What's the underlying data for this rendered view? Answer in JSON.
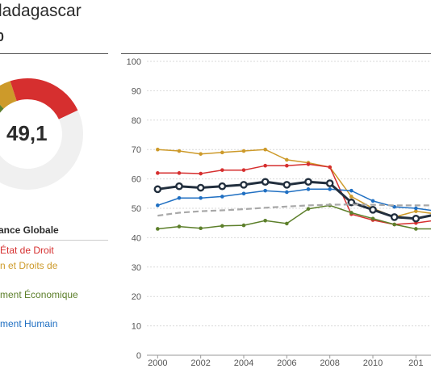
{
  "header": {
    "title": "ladagascar",
    "rank": "0"
  },
  "score": {
    "value": "49,1",
    "segments": [
      {
        "color": "#d62f2f",
        "value": 0.18
      },
      {
        "color": "#f0f0f0",
        "value": 0.52
      },
      {
        "color": "#1f6fc2",
        "value": 0.12
      },
      {
        "color": "#5c7f2a",
        "value": 0.06
      },
      {
        "color": "#cd9a2a",
        "value": 0.07
      },
      {
        "color": "#d62f2f",
        "value": 0.05
      }
    ]
  },
  "legend": {
    "title": "ance Globale",
    "items": [
      {
        "label": "État de Droit",
        "color": "#d62f2f"
      },
      {
        "label": "n et Droits de",
        "color": "#cd9a2a"
      },
      {
        "label": "ment Économique",
        "color": "#5c7f2a"
      },
      {
        "label": "ment Humain",
        "color": "#1f6fc2"
      }
    ]
  },
  "chart_data": {
    "type": "line",
    "x": [
      2000,
      2001,
      2002,
      2003,
      2004,
      2005,
      2006,
      2007,
      2008,
      2009,
      2010,
      2011,
      2012,
      2013
    ],
    "y_ticks": [
      "0",
      "10",
      "20",
      "30",
      "40",
      "50",
      "60",
      "70",
      "80",
      "90",
      "100"
    ],
    "x_ticks": [
      "2000",
      "2002",
      "2004",
      "2006",
      "2008",
      "2010",
      "201"
    ],
    "ylim": [
      0,
      100
    ],
    "xlim": [
      1999.5,
      2012.7
    ],
    "grid": true,
    "series": [
      {
        "color": "#cd9a2a",
        "style": "dots",
        "values": [
          70,
          69.5,
          68.5,
          69,
          69.5,
          70,
          66.5,
          65.5,
          64,
          54,
          50,
          47,
          49,
          48
        ]
      },
      {
        "color": "#d62f2f",
        "style": "dots",
        "values": [
          62,
          62,
          61.8,
          63,
          63,
          64.5,
          64.5,
          65,
          64,
          48,
          46,
          44.5,
          45,
          46
        ]
      },
      {
        "color": "#1f6fc2",
        "style": "dots",
        "values": [
          51,
          53.5,
          53.5,
          54,
          55,
          56,
          55.5,
          56.5,
          56.5,
          56,
          52.5,
          50.5,
          50,
          49
        ]
      },
      {
        "color": "#5c7f2a",
        "style": "dots",
        "values": [
          43,
          43.8,
          43.2,
          44,
          44.2,
          45.8,
          44.8,
          49.8,
          51,
          48.5,
          46.5,
          44.5,
          43,
          43
        ]
      },
      {
        "color": "#222f3e",
        "style": "bold",
        "values": [
          56.5,
          57.5,
          57,
          57.5,
          58,
          59,
          58,
          59,
          58.5,
          52,
          49.5,
          47,
          46.5,
          48
        ]
      },
      {
        "color": "#a8a8a8",
        "style": "dashed",
        "values": [
          47.5,
          48.5,
          49,
          49.3,
          49.7,
          50.2,
          50.6,
          51,
          51.2,
          51.3,
          51.2,
          51,
          51,
          51
        ]
      }
    ]
  }
}
